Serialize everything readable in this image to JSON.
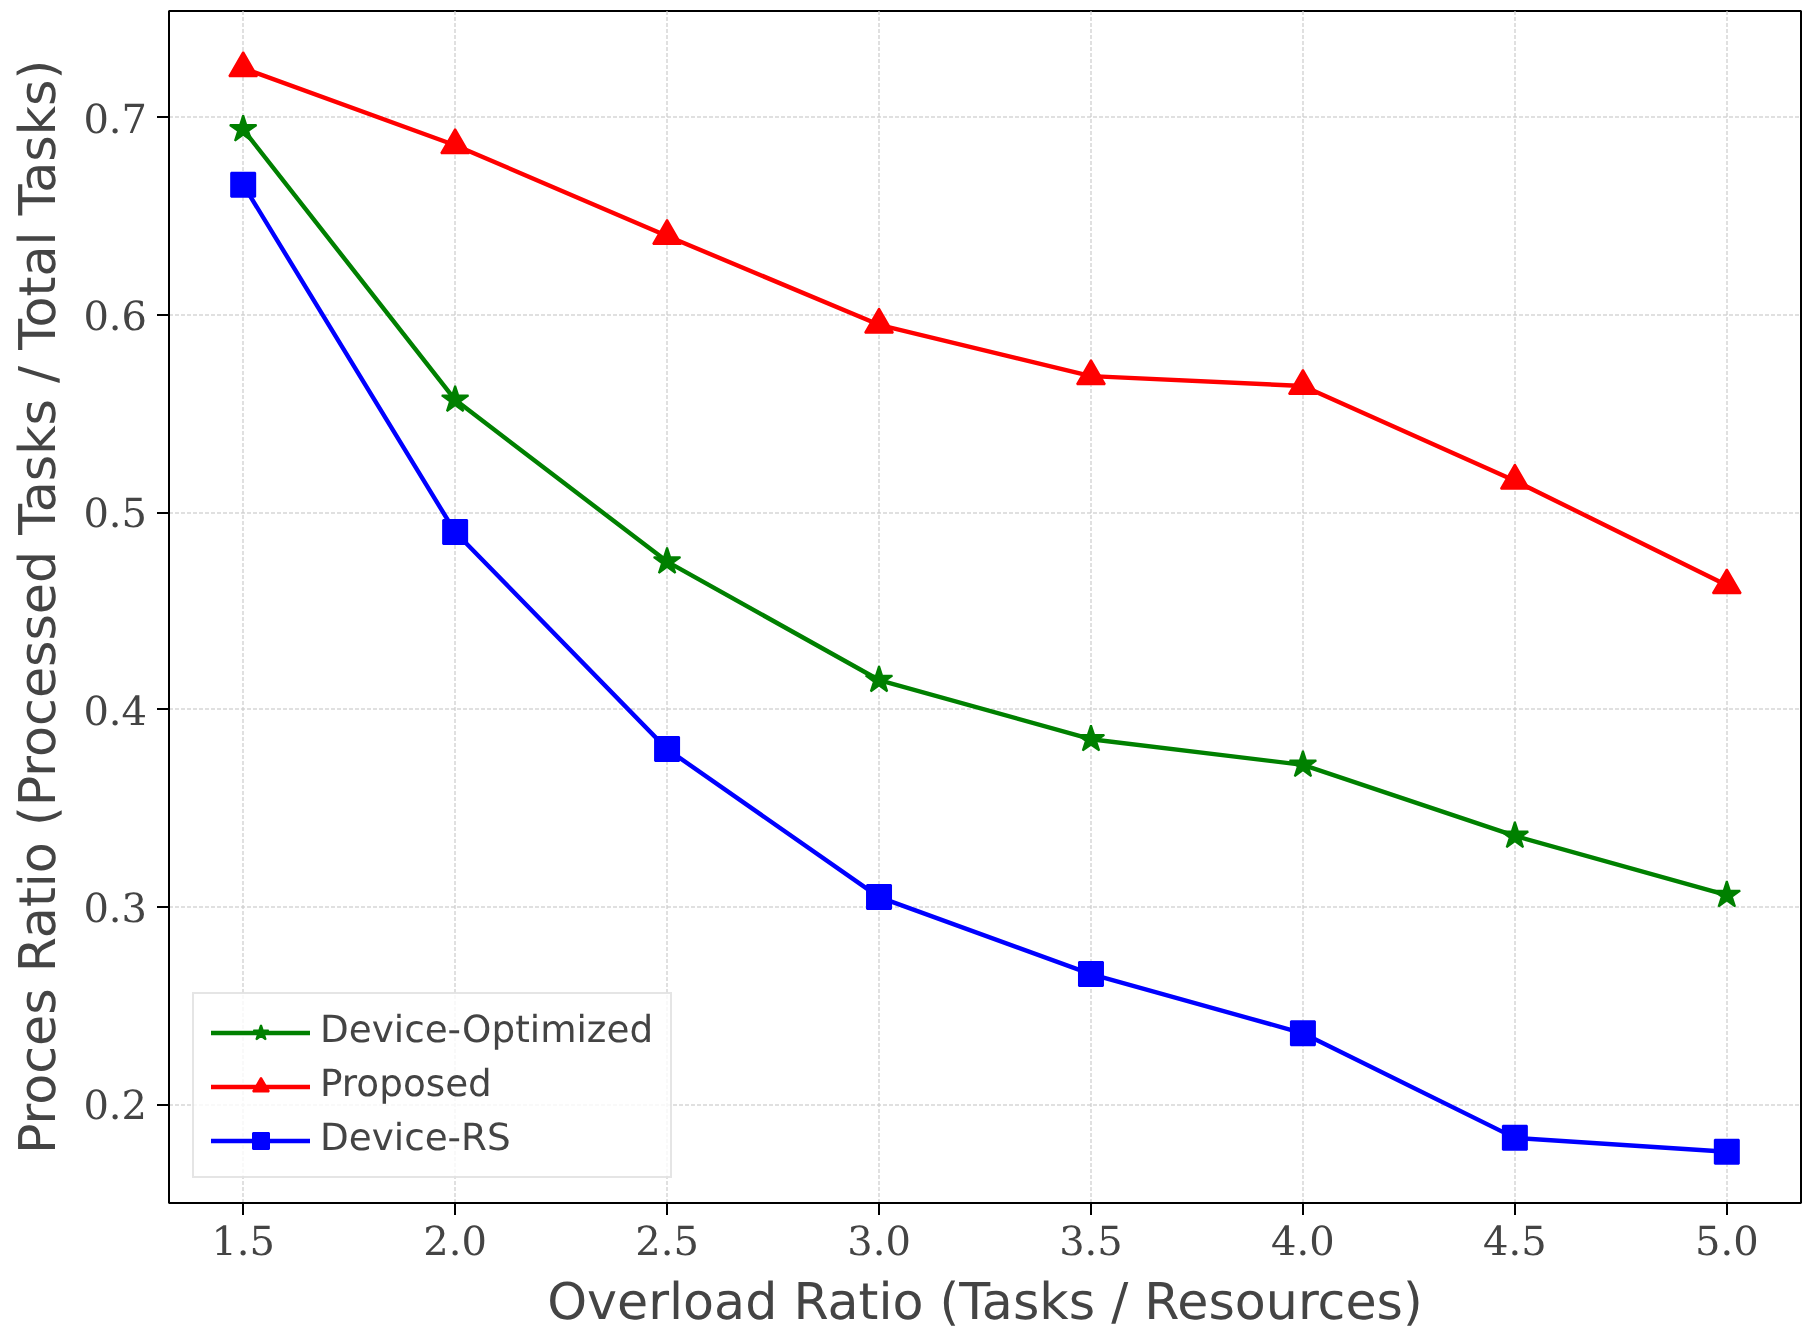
{
  "chart_data": {
    "type": "line",
    "xlabel": "Overload Ratio (Tasks / Resources)",
    "ylabel": "Proces Ratio (Processed Tasks / Total Tasks)",
    "x": [
      1.5,
      2.0,
      2.5,
      3.0,
      3.5,
      4.0,
      4.5,
      5.0
    ],
    "series": [
      {
        "name": "Device-Optimized",
        "color": "#008000",
        "marker": "star",
        "values": [
          0.694,
          0.557,
          0.475,
          0.415,
          0.385,
          0.372,
          0.336,
          0.306
        ]
      },
      {
        "name": "Proposed",
        "color": "#ff0000",
        "marker": "triangle",
        "values": [
          0.725,
          0.686,
          0.64,
          0.595,
          0.569,
          0.564,
          0.516,
          0.463
        ]
      },
      {
        "name": "Device-RS",
        "color": "#0000ff",
        "marker": "square",
        "values": [
          0.666,
          0.49,
          0.38,
          0.305,
          0.266,
          0.236,
          0.183,
          0.176
        ]
      }
    ],
    "xlim": [
      1.325,
      5.175
    ],
    "ylim": [
      0.15,
      0.754
    ],
    "xticks": [
      {
        "value": 1.5,
        "label": "1.5"
      },
      {
        "value": 2.0,
        "label": "2.0"
      },
      {
        "value": 2.5,
        "label": "2.5"
      },
      {
        "value": 3.0,
        "label": "3.0"
      },
      {
        "value": 3.5,
        "label": "3.5"
      },
      {
        "value": 4.0,
        "label": "4.0"
      },
      {
        "value": 4.5,
        "label": "4.5"
      },
      {
        "value": 5.0,
        "label": "5.0"
      }
    ],
    "yticks": [
      0.2,
      0.3,
      0.4,
      0.5,
      0.6,
      0.7
    ],
    "grid": true,
    "legend": "bottom left",
    "line_style": "solid"
  }
}
